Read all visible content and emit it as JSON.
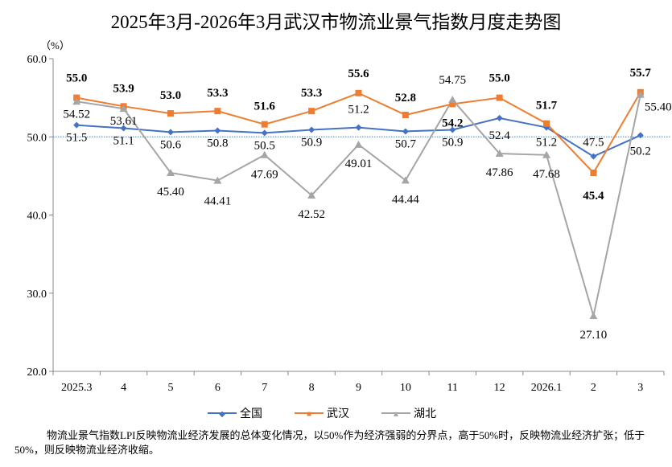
{
  "chart_data": {
    "type": "line",
    "title": "2025年3月-2026年3月武汉市物流业景气指数月度走势图",
    "ylabel": "（%）",
    "ylim": [
      20,
      60
    ],
    "yticks": [
      "20.0",
      "30.0",
      "40.0",
      "50.0",
      "60.0"
    ],
    "reference_line": 50,
    "categories": [
      "2025.3",
      "4",
      "5",
      "6",
      "7",
      "8",
      "9",
      "10",
      "11",
      "12",
      "2026.1",
      "2",
      "3"
    ],
    "series": [
      {
        "name": "全国",
        "color": "#4472C4",
        "marker": "diamond",
        "values": [
          51.5,
          51.1,
          50.6,
          50.8,
          50.5,
          50.9,
          51.2,
          50.7,
          50.9,
          52.4,
          51.2,
          47.5,
          50.2
        ],
        "labels": [
          "51.5",
          "51.1",
          "50.6",
          "50.8",
          "50.5",
          "50.9",
          "51.2",
          "50.7",
          "50.9",
          "52.4",
          "51.2",
          "47.5",
          "50.2"
        ]
      },
      {
        "name": "武汉",
        "color": "#ED7D31",
        "marker": "square",
        "values": [
          55.0,
          53.9,
          53.0,
          53.3,
          51.6,
          53.3,
          55.6,
          52.8,
          54.2,
          55.0,
          51.7,
          45.4,
          55.7
        ],
        "labels": [
          "55.0",
          "53.9",
          "53.0",
          "53.3",
          "51.6",
          "53.3",
          "55.6",
          "52.8",
          "54.2",
          "55.0",
          "51.7",
          "45.4",
          "55.7"
        ]
      },
      {
        "name": "湖北",
        "color": "#A5A5A5",
        "marker": "triangle",
        "values": [
          54.52,
          53.61,
          45.4,
          44.41,
          47.69,
          42.52,
          49.01,
          44.44,
          54.75,
          47.86,
          47.68,
          27.1,
          55.4
        ],
        "labels": [
          "54.52",
          "53.61",
          "45.40",
          "44.41",
          "47.69",
          "42.52",
          "49.01",
          "44.44",
          "54.75",
          "47.86",
          "47.68",
          "27.10",
          "55.40"
        ]
      }
    ],
    "grid": false,
    "legend": "bottom"
  },
  "note": "物流业景气指数LPI反映物流业经济发展的总体变化情况，以50%作为经济强弱的分界点，高于50%时，反映物流业经济扩张；低于50%，则反映物流业经济收缩。"
}
